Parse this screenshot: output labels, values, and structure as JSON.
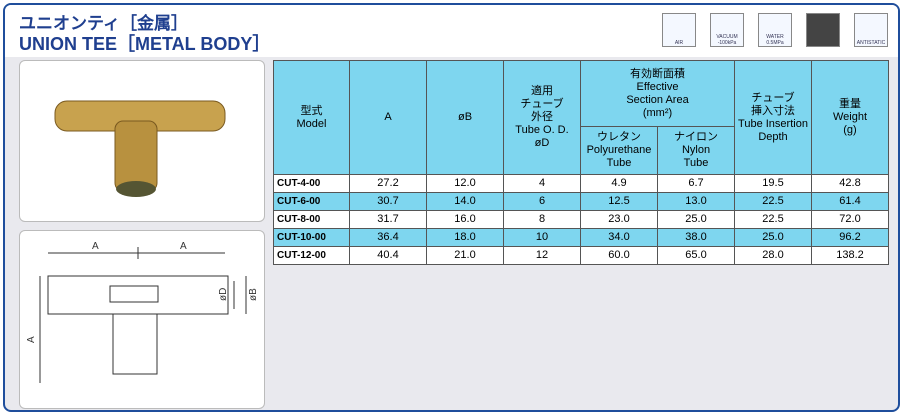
{
  "header": {
    "title_ja": "ユニオンティ［金属］",
    "title_en": "UNION TEE［METAL BODY］",
    "icons": [
      "AIR",
      "VACUUM -100kPa",
      "WATER 0.5MPa",
      "ANTISTATIC"
    ]
  },
  "drawing": {
    "labels": [
      "A",
      "A",
      "øD",
      "øB",
      "A"
    ]
  },
  "table": {
    "head": {
      "model": [
        "型式",
        "Model"
      ],
      "a": [
        "A"
      ],
      "b": [
        "øB"
      ],
      "od": [
        "適用",
        "チューブ",
        "外径",
        "Tube O. D.",
        "øD"
      ],
      "area": [
        "有効断面積",
        "Effective",
        "Section Area",
        "(mm²)"
      ],
      "pu": [
        "ウレタン",
        "Polyurethane",
        "Tube"
      ],
      "ny": [
        "ナイロン",
        "Nylon",
        "Tube"
      ],
      "depth": [
        "チューブ",
        "挿入寸法",
        "Tube Insertion",
        "Depth"
      ],
      "weight": [
        "重量",
        "Weight",
        "(g)"
      ]
    },
    "rows": [
      [
        "CUT-4-00",
        "27.2",
        "12.0",
        "4",
        "4.9",
        "6.7",
        "19.5",
        "42.8"
      ],
      [
        "CUT-6-00",
        "30.7",
        "14.0",
        "6",
        "12.5",
        "13.0",
        "22.5",
        "61.4"
      ],
      [
        "CUT-8-00",
        "31.7",
        "16.0",
        "8",
        "23.0",
        "25.0",
        "22.5",
        "72.0"
      ],
      [
        "CUT-10-00",
        "36.4",
        "18.0",
        "10",
        "34.0",
        "38.0",
        "25.0",
        "96.2"
      ],
      [
        "CUT-12-00",
        "40.4",
        "21.0",
        "12",
        "60.0",
        "65.0",
        "28.0",
        "138.2"
      ]
    ]
  }
}
